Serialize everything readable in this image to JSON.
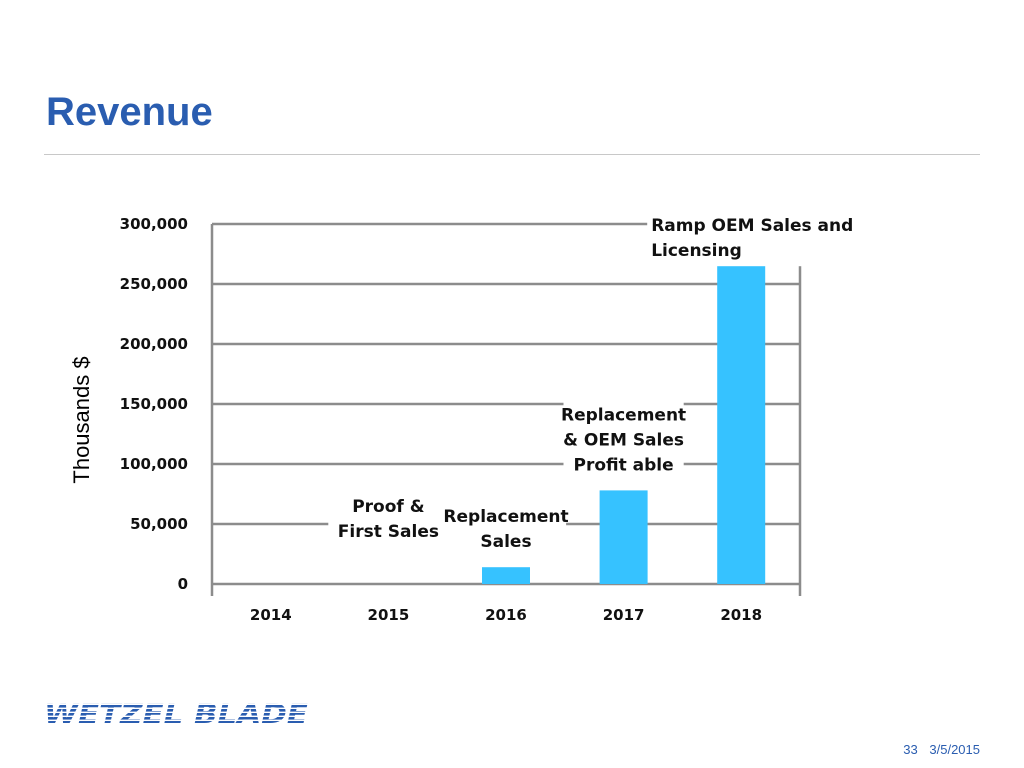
{
  "slide": {
    "title": "Revenue",
    "page_number": "33",
    "date": "3/5/2015",
    "logo_text": "WETZEL BLADE"
  },
  "colors": {
    "title": "#2a5db0",
    "bar": "#36c2ff",
    "grid": "#8c8c8c"
  },
  "chart_data": {
    "type": "bar",
    "title": "",
    "xlabel": "",
    "ylabel": "Thousands $",
    "categories": [
      "2014",
      "2015",
      "2016",
      "2017",
      "2018"
    ],
    "values": [
      0,
      0,
      14000,
      78000,
      269000
    ],
    "ylim": [
      0,
      300000
    ],
    "yticks": [
      0,
      50000,
      100000,
      150000,
      200000,
      250000,
      300000
    ],
    "ytick_labels": [
      "0",
      "50,000",
      "100,000",
      "150,000",
      "200,000",
      "250,000",
      "300,000"
    ],
    "grid": true,
    "legend": "none",
    "annotations": [
      {
        "category": "2015",
        "lines": [
          "Proof  &",
          "First Sales"
        ]
      },
      {
        "category": "2016",
        "lines": [
          "Replacement",
          "Sales"
        ]
      },
      {
        "category": "2017",
        "lines": [
          "Replacement",
          "& OEM Sales",
          "Profit able"
        ]
      },
      {
        "category": "2018",
        "lines": [
          "Ramp OEM Sales and",
          "Licensing"
        ]
      }
    ]
  }
}
